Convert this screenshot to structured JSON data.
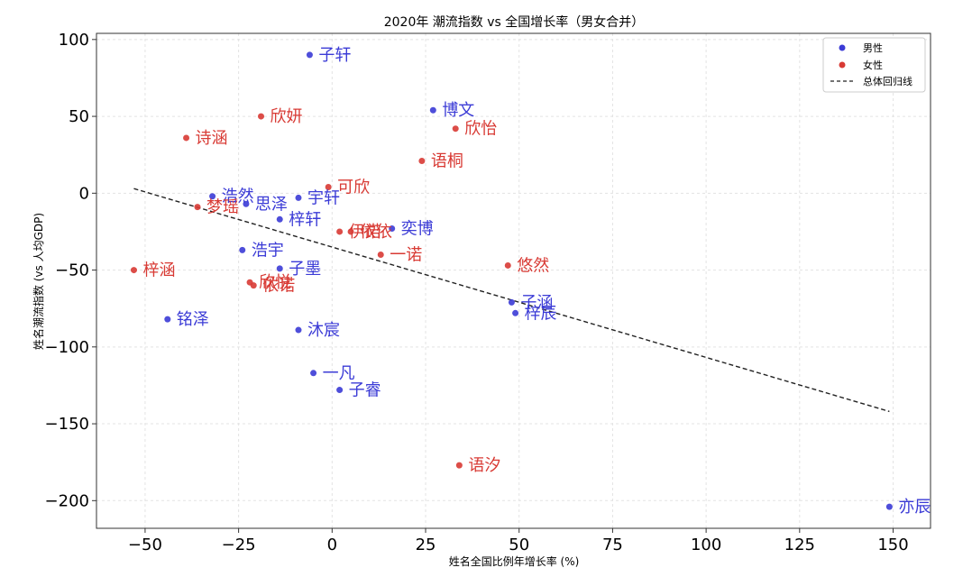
{
  "chart_data": {
    "type": "scatter",
    "title": "2020年 潮流指数 vs 全国增长率（男女合并）",
    "xlabel": "姓名全国比例年增长率 (%)",
    "ylabel": "姓名潮流指数 (vs 人均GDP)",
    "xlim": [
      -63,
      160
    ],
    "ylim": [
      -218,
      104
    ],
    "xticks": [
      -50,
      -25,
      0,
      25,
      50,
      75,
      100,
      125,
      150
    ],
    "yticks": [
      100,
      50,
      0,
      -50,
      -100,
      -150,
      -200
    ],
    "grid": true,
    "legend_position": "top-right",
    "colors": {
      "male": "#3b3bd6",
      "female": "#d83a34",
      "regression": "#222222"
    },
    "series": [
      {
        "name": "男性",
        "points": [
          {
            "label": "子轩",
            "x": -6,
            "y": 90
          },
          {
            "label": "博文",
            "x": 27,
            "y": 54
          },
          {
            "label": "浩然",
            "x": -32,
            "y": -2
          },
          {
            "label": "思泽",
            "x": -23,
            "y": -7
          },
          {
            "label": "宇轩",
            "x": -9,
            "y": -3
          },
          {
            "label": "梓轩",
            "x": -14,
            "y": -17
          },
          {
            "label": "奕博",
            "x": 16,
            "y": -23
          },
          {
            "label": "浩宇",
            "x": -24,
            "y": -37
          },
          {
            "label": "子墨",
            "x": -14,
            "y": -49
          },
          {
            "label": "铭泽",
            "x": -44,
            "y": -82
          },
          {
            "label": "沐宸",
            "x": -9,
            "y": -89
          },
          {
            "label": "子涵",
            "x": 48,
            "y": -71
          },
          {
            "label": "梓辰",
            "x": 49,
            "y": -78
          },
          {
            "label": "一凡",
            "x": -5,
            "y": -117
          },
          {
            "label": "子睿",
            "x": 2,
            "y": -128
          },
          {
            "label": "亦辰",
            "x": 149,
            "y": -204
          }
        ]
      },
      {
        "name": "女性",
        "points": [
          {
            "label": "欣妍",
            "x": -19,
            "y": 50
          },
          {
            "label": "诗涵",
            "x": -39,
            "y": 36
          },
          {
            "label": "欣怡",
            "x": 33,
            "y": 42
          },
          {
            "label": "语桐",
            "x": 24,
            "y": 21
          },
          {
            "label": "可欣",
            "x": -1,
            "y": 4
          },
          {
            "label": "梦瑶",
            "x": -36,
            "y": -9
          },
          {
            "label": "伊诺",
            "x": 2,
            "y": -25
          },
          {
            "label": "依依",
            "x": 5,
            "y": -25
          },
          {
            "label": "一诺",
            "x": 13,
            "y": -40
          },
          {
            "label": "梓涵",
            "x": -53,
            "y": -50
          },
          {
            "label": "悠然",
            "x": 47,
            "y": -47
          },
          {
            "label": "欣悦",
            "x": -22,
            "y": -58
          },
          {
            "label": "依诺",
            "x": -21,
            "y": -60
          },
          {
            "label": "语汐",
            "x": 34,
            "y": -177
          }
        ]
      }
    ],
    "regression": {
      "name": "总体回归线",
      "x": [
        -53,
        149
      ],
      "y": [
        3,
        -142
      ]
    }
  }
}
